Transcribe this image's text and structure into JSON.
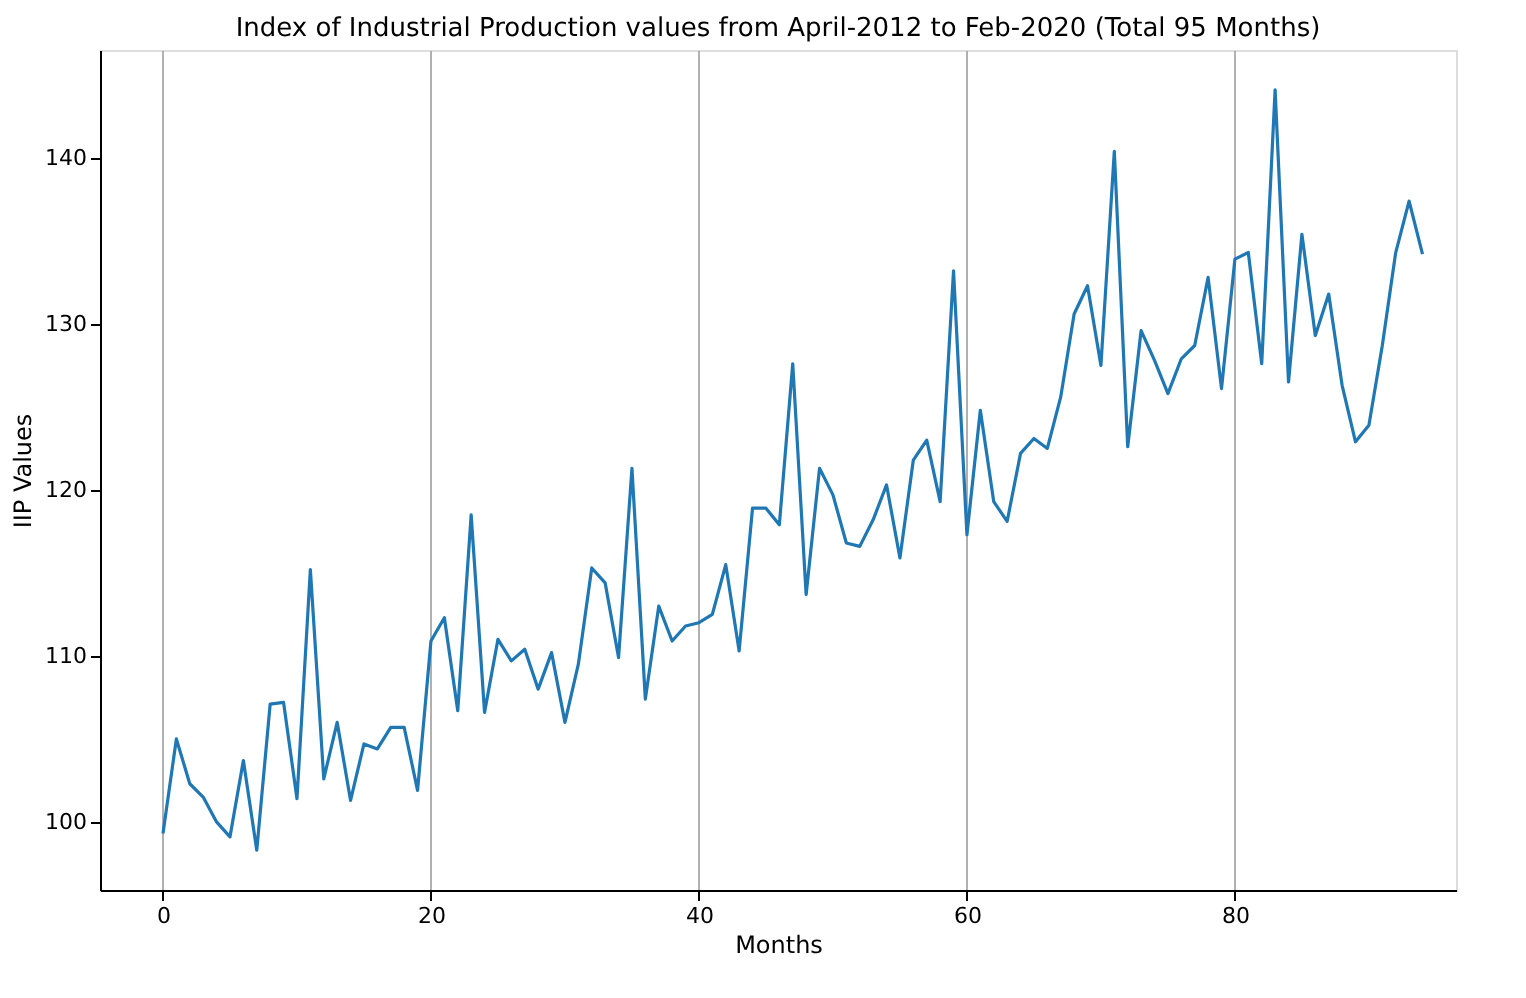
{
  "chart_data": {
    "type": "line",
    "title": "Index of Industrial Production values from April-2012 to Feb-2020 (Total 95 Months)",
    "xlabel": "Months",
    "ylabel": "IIP Values",
    "x": [
      0,
      1,
      2,
      3,
      4,
      5,
      6,
      7,
      8,
      9,
      10,
      11,
      12,
      13,
      14,
      15,
      16,
      17,
      18,
      19,
      20,
      21,
      22,
      23,
      24,
      25,
      26,
      27,
      28,
      29,
      30,
      31,
      32,
      33,
      34,
      35,
      36,
      37,
      38,
      39,
      40,
      41,
      42,
      43,
      44,
      45,
      46,
      47,
      48,
      49,
      50,
      51,
      52,
      53,
      54,
      55,
      56,
      57,
      58,
      59,
      60,
      61,
      62,
      63,
      64,
      65,
      66,
      67,
      68,
      69,
      70,
      71,
      72,
      73,
      74,
      75,
      76,
      77,
      78,
      79,
      80,
      81,
      82,
      83,
      84,
      85,
      86,
      87,
      88,
      89,
      90,
      91,
      92,
      93,
      94
    ],
    "series": [
      {
        "color": "#1f77b4",
        "values": [
          99.3,
          105,
          102.3,
          101.5,
          100,
          99.1,
          103.7,
          98.3,
          107.1,
          107.2,
          101.4,
          115.2,
          102.6,
          106,
          101.3,
          104.7,
          104.4,
          105.7,
          105.7,
          101.9,
          110.9,
          112.3,
          106.7,
          118.5,
          106.6,
          111,
          109.7,
          110.4,
          108,
          110.2,
          106,
          109.5,
          115.3,
          114.4,
          109.9,
          121.3,
          107.4,
          113,
          110.9,
          111.8,
          112,
          112.5,
          115.5,
          110.3,
          118.9,
          118.9,
          117.9,
          127.6,
          113.7,
          121.3,
          119.7,
          116.8,
          116.6,
          118.2,
          120.3,
          115.9,
          121.8,
          123,
          119.3,
          133.2,
          117.3,
          124.8,
          119.3,
          118.1,
          122.2,
          123.1,
          122.5,
          125.6,
          130.6,
          132.3,
          127.5,
          140.4,
          122.6,
          129.6,
          127.8,
          125.8,
          127.9,
          128.7,
          132.8,
          126.1,
          133.9,
          134.3,
          127.6,
          144.1,
          126.5,
          135.4,
          129.3,
          131.8,
          126.3,
          122.9,
          123.9,
          128.7,
          134.3,
          137.4,
          134.2
        ]
      }
    ],
    "xlim": [
      -4.7,
      96.5
    ],
    "ylim": [
      95.9,
      146.5
    ],
    "xticks": [
      0,
      20,
      40,
      60,
      80
    ],
    "yticks": [
      100,
      110,
      120,
      130,
      140
    ],
    "grid": "x",
    "marker": "none",
    "line_style": "solid"
  }
}
